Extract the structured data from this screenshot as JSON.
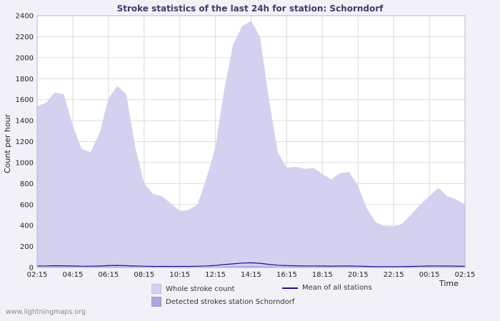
{
  "page": {
    "watermark": "www.lightningmaps.org"
  },
  "chart_data": {
    "type": "area",
    "title": "Stroke statistics of the last 24h for station: Schorndorf",
    "xlabel": "Time",
    "ylabel": "Count per hour",
    "ylim": [
      0,
      2400
    ],
    "ytick_step": 200,
    "grid": true,
    "legend_position": "bottom",
    "x_tick_labels": [
      "02:15",
      "04:15",
      "06:15",
      "08:15",
      "10:15",
      "12:15",
      "14:15",
      "16:15",
      "18:15",
      "20:15",
      "22:15",
      "00:15",
      "02:15"
    ],
    "points_per_tick": 4,
    "x_resolution_minutes": 30,
    "series": [
      {
        "name": "Whole stroke count",
        "type": "area",
        "color": "#d3d1f0",
        "values": [
          1540,
          1570,
          1670,
          1650,
          1350,
          1130,
          1100,
          1280,
          1610,
          1730,
          1650,
          1150,
          800,
          700,
          680,
          610,
          540,
          550,
          600,
          850,
          1150,
          1700,
          2130,
          2300,
          2350,
          2200,
          1600,
          1100,
          950,
          960,
          940,
          950,
          890,
          840,
          900,
          910,
          780,
          560,
          430,
          395,
          390,
          420,
          510,
          600,
          680,
          760,
          680,
          650,
          600
        ]
      },
      {
        "name": "Detected strokes station Schorndorf",
        "type": "area",
        "color": "#a9a7dd",
        "values": [
          5,
          5,
          6,
          6,
          5,
          4,
          4,
          5,
          6,
          7,
          6,
          5,
          4,
          3,
          3,
          3,
          3,
          3,
          4,
          5,
          7,
          9,
          12,
          14,
          15,
          13,
          10,
          8,
          6,
          6,
          6,
          6,
          5,
          5,
          5,
          5,
          4,
          3,
          3,
          3,
          3,
          3,
          4,
          4,
          5,
          6,
          5,
          5,
          4
        ]
      },
      {
        "name": "Mean of all stations",
        "type": "line",
        "color": "#14148c",
        "values": [
          15,
          15,
          17,
          16,
          14,
          12,
          12,
          14,
          18,
          20,
          17,
          14,
          12,
          10,
          10,
          10,
          10,
          10,
          12,
          15,
          20,
          28,
          35,
          42,
          45,
          40,
          30,
          22,
          18,
          16,
          15,
          15,
          14,
          13,
          14,
          14,
          12,
          10,
          8,
          8,
          8,
          9,
          10,
          12,
          14,
          15,
          14,
          13,
          12
        ]
      }
    ],
    "colors": {
      "background": "#f3f1f8",
      "plot_bg": "#ffffff",
      "grid": "#dcdcdc",
      "border": "#b8b8c8",
      "title": "#3c3c6e"
    }
  }
}
